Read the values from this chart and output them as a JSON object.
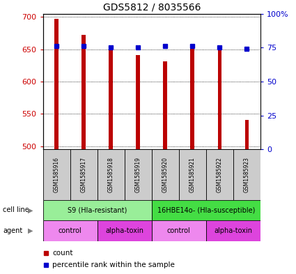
{
  "title": "GDS5812 / 8035566",
  "samples": [
    "GSM1585916",
    "GSM1585917",
    "GSM1585918",
    "GSM1585919",
    "GSM1585920",
    "GSM1585921",
    "GSM1585922",
    "GSM1585923"
  ],
  "counts": [
    697,
    672,
    649,
    641,
    631,
    653,
    651,
    541
  ],
  "percentiles": [
    76,
    76,
    75,
    75,
    76,
    76,
    75,
    74
  ],
  "ylim_left": [
    495,
    705
  ],
  "ylim_right": [
    0,
    100
  ],
  "yticks_left": [
    500,
    550,
    600,
    650,
    700
  ],
  "yticks_right": [
    0,
    25,
    50,
    75,
    100
  ],
  "bar_color": "#bb0000",
  "dot_color": "#0000cc",
  "grid_color": "#000000",
  "cell_line_groups": [
    {
      "label": "S9 (Hla-resistant)",
      "start": 0,
      "end": 4,
      "color": "#99ee99"
    },
    {
      "label": "16HBE14o- (Hla-susceptible)",
      "start": 4,
      "end": 8,
      "color": "#44dd44"
    }
  ],
  "agent_groups": [
    {
      "label": "control",
      "start": 0,
      "end": 2,
      "color": "#ee88ee"
    },
    {
      "label": "alpha-toxin",
      "start": 2,
      "end": 4,
      "color": "#dd44dd"
    },
    {
      "label": "control",
      "start": 4,
      "end": 6,
      "color": "#ee88ee"
    },
    {
      "label": "alpha-toxin",
      "start": 6,
      "end": 8,
      "color": "#dd44dd"
    }
  ],
  "sample_box_color": "#cccccc",
  "legend_count_color": "#bb0000",
  "legend_dot_color": "#0000cc",
  "left_label_color": "#cc0000",
  "right_label_color": "#0000cc",
  "bar_width": 0.15
}
